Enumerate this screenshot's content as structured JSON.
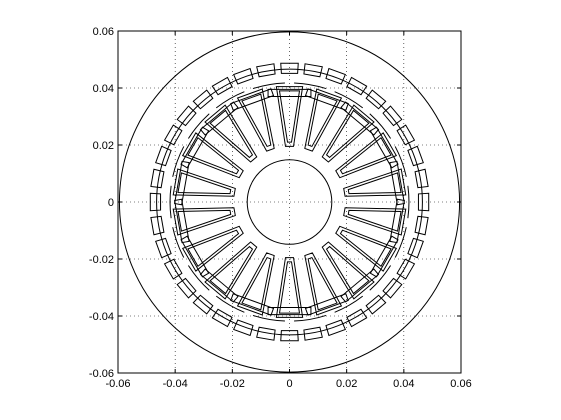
{
  "chart_data": {
    "type": "scatter",
    "title": "",
    "xlabel": "",
    "ylabel": "",
    "xlim": [
      -0.06,
      0.06
    ],
    "ylim": [
      -0.06,
      0.06
    ],
    "grid": true,
    "aspect": "equal",
    "x_ticks": [
      "-0.06",
      "-0.04",
      "-0.02",
      "0",
      "0.02",
      "0.04",
      "0.06"
    ],
    "y_ticks": [
      "0.06",
      "0.04",
      "0.02",
      "0",
      "-0.02",
      "-0.04",
      "-0.06"
    ],
    "x_tick_values": [
      -0.06,
      -0.04,
      -0.02,
      0,
      0.02,
      0.04,
      0.06
    ],
    "y_tick_values": [
      0.06,
      0.04,
      0.02,
      0,
      -0.02,
      -0.04,
      -0.06
    ],
    "geometry": {
      "circles": [
        {
          "name": "stator-outer",
          "cx": 0,
          "cy": 0,
          "r": 0.0595
        },
        {
          "name": "stator-inner",
          "cx": 0,
          "cy": 0,
          "r": 0.0465
        },
        {
          "name": "shaft",
          "cx": 0,
          "cy": 0,
          "r": 0.0148
        }
      ],
      "stator_slots": {
        "count": 36,
        "r_in": 0.0452,
        "r_out": 0.0488,
        "half_angle_deg": 3.6,
        "phase_deg": 0
      },
      "rotor": {
        "r_out": 0.0418,
        "gap_half_angle_deg": 2.2
      },
      "rotor_bars": {
        "count": 18,
        "r_in": 0.0195,
        "r_out": 0.0405,
        "half_width_in": 0.0014,
        "half_width_out": 0.0046,
        "phase_deg": 90
      },
      "bar_ends": {
        "r_in": 0.037,
        "r_out": 0.0395,
        "half_width": 0.0075
      }
    }
  }
}
